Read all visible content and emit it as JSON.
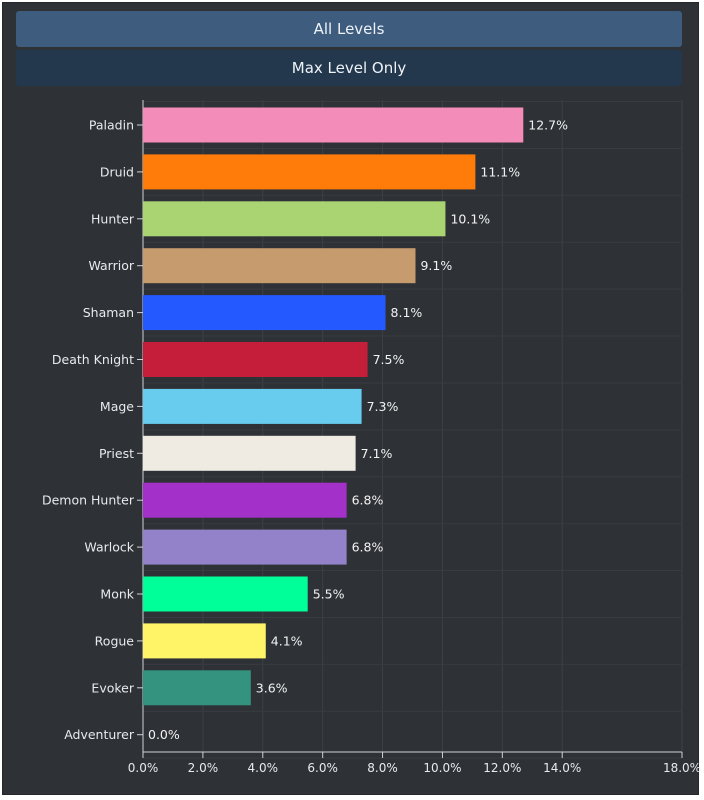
{
  "tabs": {
    "all_levels": "All Levels",
    "max_level_only": "Max Level Only"
  },
  "chart_data": {
    "type": "bar",
    "orientation": "horizontal",
    "title": "",
    "xlabel": "",
    "ylabel": "",
    "xlim": [
      0,
      18
    ],
    "x_ticks": [
      "0.0%",
      "2.0%",
      "4.0%",
      "6.0%",
      "8.0%",
      "10.0%",
      "12.0%",
      "14.0%",
      "18.0%"
    ],
    "x_tick_values": [
      0,
      2,
      4,
      6,
      8,
      10,
      12,
      14,
      18
    ],
    "grid": true,
    "categories": [
      "Paladin",
      "Druid",
      "Hunter",
      "Warrior",
      "Shaman",
      "Death Knight",
      "Mage",
      "Priest",
      "Demon Hunter",
      "Warlock",
      "Monk",
      "Rogue",
      "Evoker",
      "Adventurer"
    ],
    "values": [
      12.7,
      11.1,
      10.1,
      9.1,
      8.1,
      7.5,
      7.3,
      7.1,
      6.8,
      6.8,
      5.5,
      4.1,
      3.6,
      0.0
    ],
    "value_labels": [
      "12.7%",
      "11.1%",
      "10.1%",
      "9.1%",
      "8.1%",
      "7.5%",
      "7.3%",
      "7.1%",
      "6.8%",
      "6.8%",
      "5.5%",
      "4.1%",
      "3.6%",
      "0.0%"
    ],
    "colors": [
      "#f48cba",
      "#ff7c0a",
      "#aad372",
      "#c69b6d",
      "#2359ff",
      "#c41e3a",
      "#68ccef",
      "#efebe2",
      "#a330c9",
      "#9382c9",
      "#00ff98",
      "#fff468",
      "#33937f",
      "#808080"
    ]
  }
}
